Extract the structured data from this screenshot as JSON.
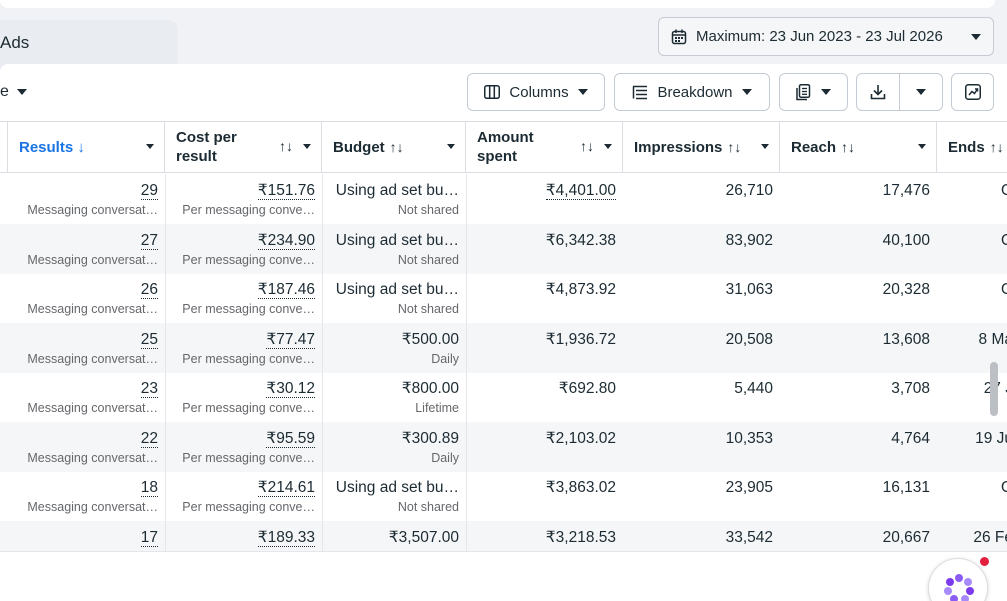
{
  "tab": {
    "label": "Ads"
  },
  "date_range": {
    "label": "Maximum: 23 Jun 2023 - 23 Jul 2026"
  },
  "toolbar": {
    "view_selector_fragment": "e",
    "columns_label": "Columns",
    "breakdown_label": "Breakdown"
  },
  "columns": {
    "results": "Results ↓",
    "cost_per_result": "Cost per result",
    "budget": "Budget",
    "amount_spent": "Amount spent",
    "impressions": "Impressions",
    "reach": "Reach",
    "ends": "Ends"
  },
  "sort_icon": "↑↓",
  "rows": [
    {
      "results": "29",
      "results_sub": "Messaging conversat…",
      "cost": "₹151.76",
      "cost_sub": "Per messaging conve…",
      "budget": "Using ad set bu…",
      "budget_sub": "Not shared",
      "spent": "₹4,401.00",
      "spent_dotted": true,
      "impressions": "26,710",
      "reach": "17,476",
      "ends": "O"
    },
    {
      "results": "27",
      "results_sub": "Messaging conversat…",
      "cost": "₹234.90",
      "cost_sub": "Per messaging conve…",
      "budget": "Using ad set bu…",
      "budget_sub": "Not shared",
      "spent": "₹6,342.38",
      "spent_dotted": false,
      "impressions": "83,902",
      "reach": "40,100",
      "ends": "O"
    },
    {
      "results": "26",
      "results_sub": "Messaging conversat…",
      "cost": "₹187.46",
      "cost_sub": "Per messaging conve…",
      "budget": "Using ad set bu…",
      "budget_sub": "Not shared",
      "spent": "₹4,873.92",
      "spent_dotted": false,
      "impressions": "31,063",
      "reach": "20,328",
      "ends": "O"
    },
    {
      "results": "25",
      "results_sub": "Messaging conversat…",
      "cost": "₹77.47",
      "cost_sub": "Per messaging conve…",
      "budget": "₹500.00",
      "budget_sub": "Daily",
      "spent": "₹1,936.72",
      "spent_dotted": false,
      "impressions": "20,508",
      "reach": "13,608",
      "ends": "8 Ma"
    },
    {
      "results": "23",
      "results_sub": "Messaging conversat…",
      "cost": "₹30.12",
      "cost_sub": "Per messaging conve…",
      "budget": "₹800.00",
      "budget_sub": "Lifetime",
      "spent": "₹692.80",
      "spent_dotted": false,
      "impressions": "5,440",
      "reach": "3,708",
      "ends": "27 J"
    },
    {
      "results": "22",
      "results_sub": "Messaging conversat…",
      "cost": "₹95.59",
      "cost_sub": "Per messaging conve…",
      "budget": "₹300.89",
      "budget_sub": "Daily",
      "spent": "₹2,103.02",
      "spent_dotted": false,
      "impressions": "10,353",
      "reach": "4,764",
      "ends": "19 Ju"
    },
    {
      "results": "18",
      "results_sub": "Messaging conversat…",
      "cost": "₹214.61",
      "cost_sub": "Per messaging conve…",
      "budget": "Using ad set bu…",
      "budget_sub": "Not shared",
      "spent": "₹3,863.02",
      "spent_dotted": false,
      "impressions": "23,905",
      "reach": "16,131",
      "ends": "O"
    },
    {
      "results": "17",
      "results_sub": "Messaging conversat…",
      "cost": "₹189.33",
      "cost_sub": "Per messaging conve…",
      "budget": "₹3,507.00",
      "budget_sub": "Lifetime",
      "spent": "₹3,218.53",
      "spent_dotted": false,
      "impressions": "33,542",
      "reach": "20,667",
      "ends": "26 Fe"
    }
  ],
  "icons": {
    "calendar": "calendar-icon",
    "columns": "columns-icon",
    "breakdown": "breakdown-icon",
    "reports": "reports-icon",
    "export": "download-icon",
    "chart": "chart-icon",
    "help": "help-orb-icon"
  },
  "colors": {
    "accent": "#1b74e4",
    "notification": "#e41e3f"
  }
}
